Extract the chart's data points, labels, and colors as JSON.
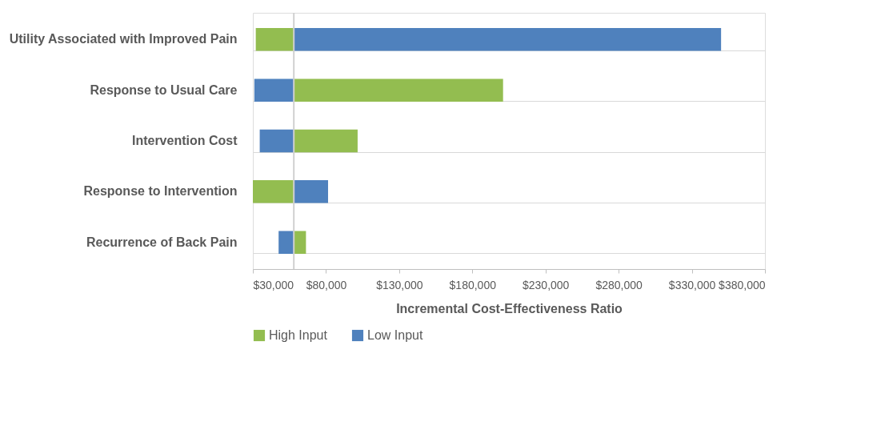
{
  "chart_data": {
    "type": "bar",
    "orientation": "horizontal",
    "xlabel": "Incremental Cost-Effectiveness Ratio",
    "categories": [
      "Utility Associated with Improved Pain",
      "Response to Usual Care",
      "Intervention Cost",
      "Response to Intervention",
      "Recurrence of Back Pain"
    ],
    "series": [
      {
        "name": "High Input",
        "color": "#93bd50",
        "base": [
          32000,
          58000,
          58000,
          30000,
          58000
        ],
        "values": [
          26000,
          143000,
          43600,
          28000,
          8300
        ]
      },
      {
        "name": "Low Input",
        "color": "#4f81bd",
        "base": [
          58000,
          31000,
          34700,
          58000,
          47600
        ],
        "values": [
          292000,
          27000,
          23300,
          23400,
          10400
        ]
      }
    ],
    "xlim": [
      30000,
      380000
    ],
    "xticks": [
      {
        "value": 30000,
        "label": "$30,000"
      },
      {
        "value": 80000,
        "label": "$80,000"
      },
      {
        "value": 130000,
        "label": "$130,000"
      },
      {
        "value": 180000,
        "label": "$180,000"
      },
      {
        "value": 230000,
        "label": "$230,000"
      },
      {
        "value": 280000,
        "label": "$280,000"
      },
      {
        "value": 330000,
        "label": "$330,000"
      },
      {
        "value": 380000,
        "label": "$380,000"
      }
    ],
    "ref_lines": [
      {
        "axis": "x",
        "value": 58000,
        "color": "#d0d0d0"
      }
    ],
    "grid": "y",
    "legend": "bottom"
  }
}
